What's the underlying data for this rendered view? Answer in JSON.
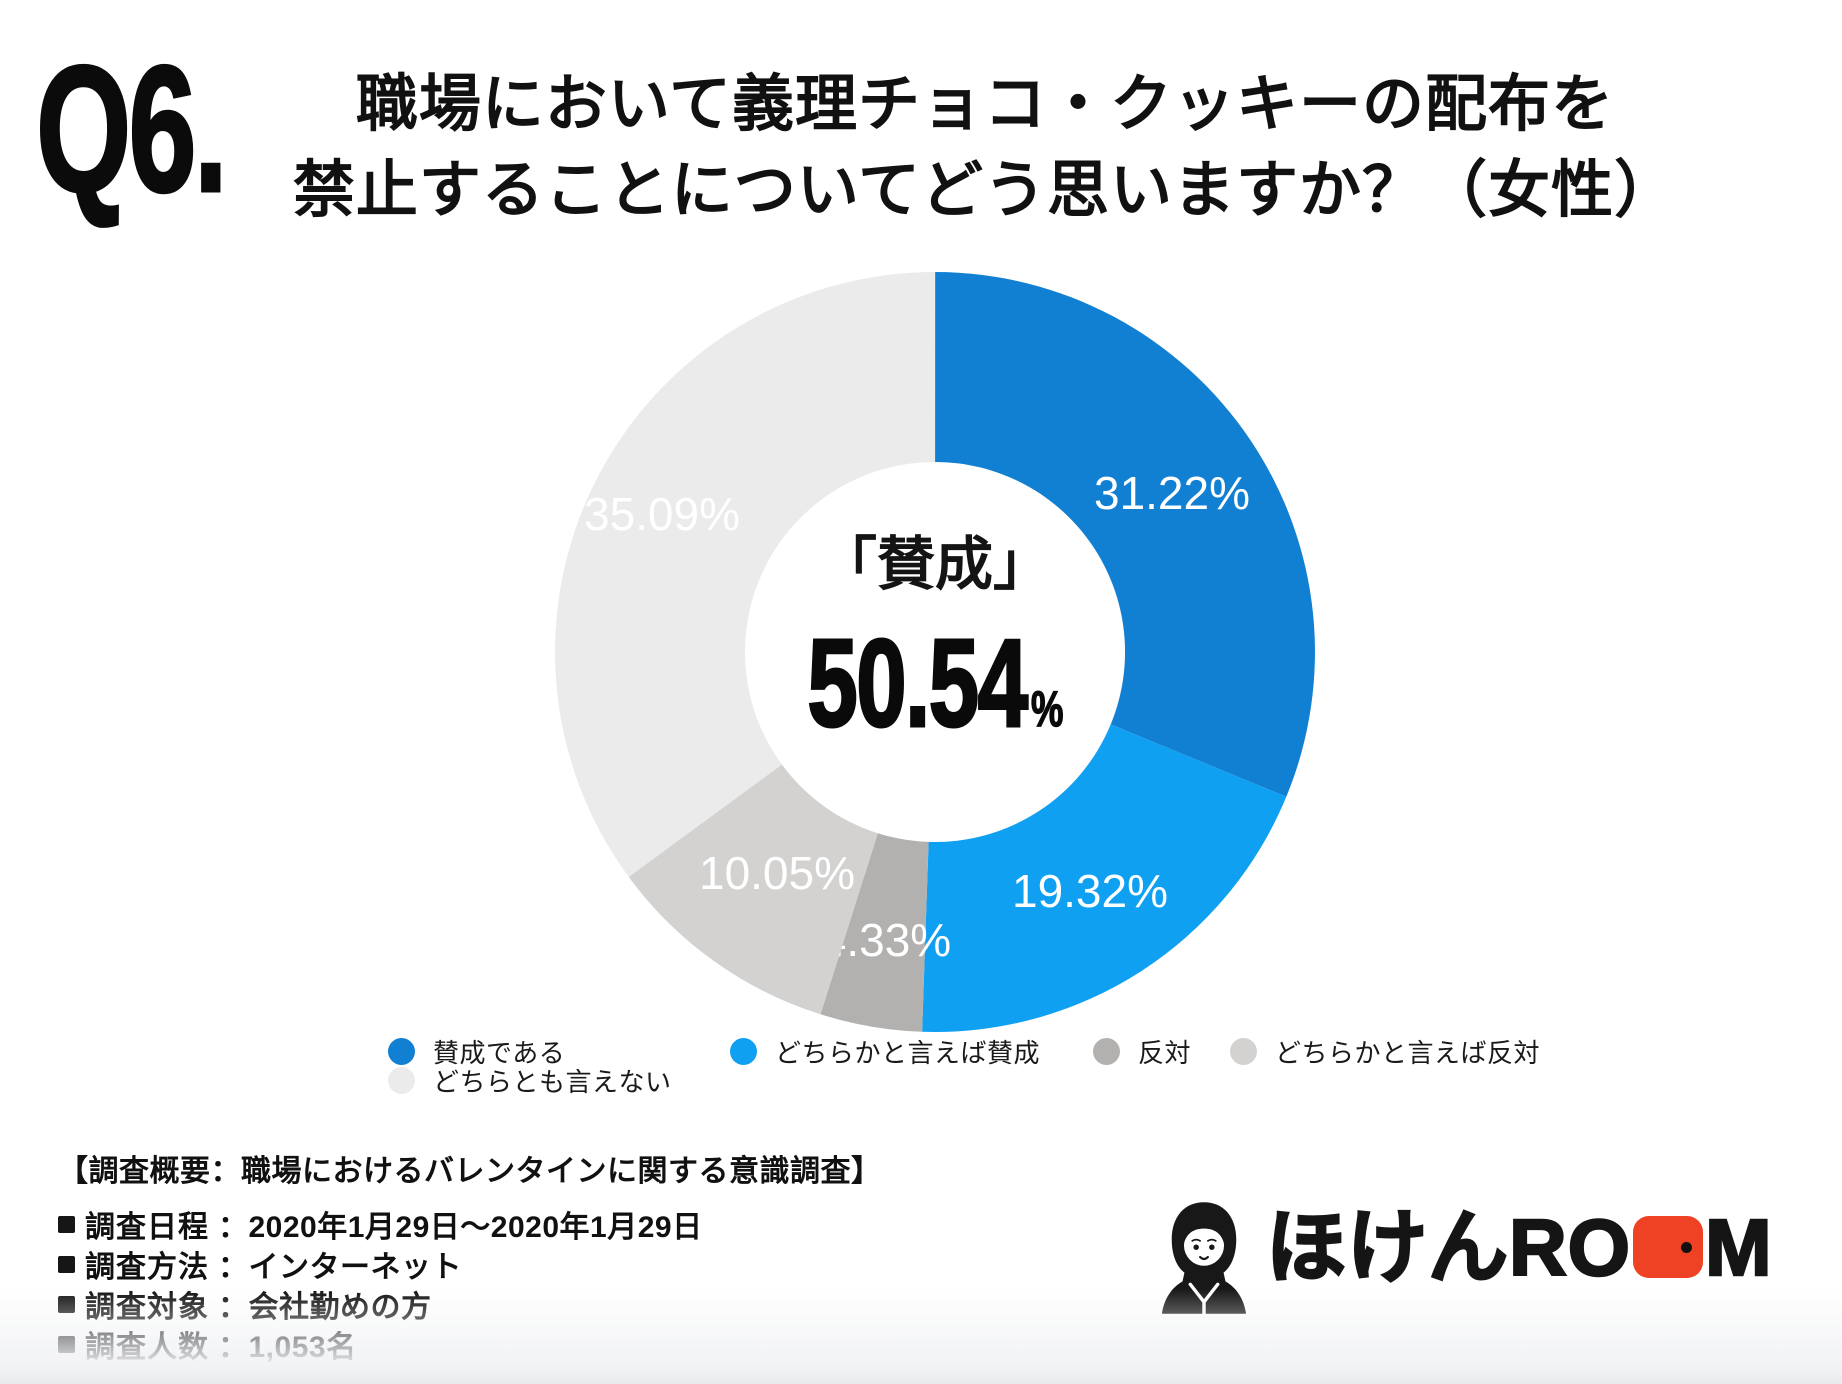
{
  "question": {
    "number": "Q6.",
    "title_line1": "職場において義理チョコ・クッキーの配布を",
    "title_line2": "禁止することについてどう思いますか？（女性）"
  },
  "chart_data": {
    "type": "pie",
    "donut": true,
    "title": "職場において義理チョコ・クッキーの配布を禁止することについてどう思いますか？（女性）",
    "start_angle_deg": 0,
    "direction": "clockwise",
    "legend_position": "bottom",
    "center_label": "「賛成」",
    "center_value": "50.54",
    "center_unit": "%",
    "slices": [
      {
        "label": "賛成である",
        "value": 31.22,
        "display": "31.22%",
        "color": "#1280d2"
      },
      {
        "label": "どちらかと言えば賛成",
        "value": 19.32,
        "display": "19.32%",
        "color": "#0fa0f2"
      },
      {
        "label": "反対",
        "value": 4.33,
        "display": "4.33%",
        "color": "#b2b1b0"
      },
      {
        "label": "どちらかと言えば反対",
        "value": 10.05,
        "display": "10.05%",
        "color": "#d3d2d1"
      },
      {
        "label": "どちらとも言えない",
        "value": 35.09,
        "display": "35.09%",
        "color": "#ebebec"
      }
    ]
  },
  "survey": {
    "header": "【調査概要：職場におけるバレンタインに関する意識調査】",
    "rows": [
      {
        "label": "調査日程",
        "value": "：2020年1月29日〜2020年1月29日"
      },
      {
        "label": "調査方法",
        "value": "：インターネット"
      },
      {
        "label": "調査対象",
        "value": "：会社勤めの方"
      },
      {
        "label": "調査人数",
        "value": "：1,053名"
      }
    ]
  },
  "logo": {
    "name": "ほけんROOM",
    "text_before_door": "ほけんRO",
    "text_after_door": "M",
    "door_color": "#ef4123"
  }
}
